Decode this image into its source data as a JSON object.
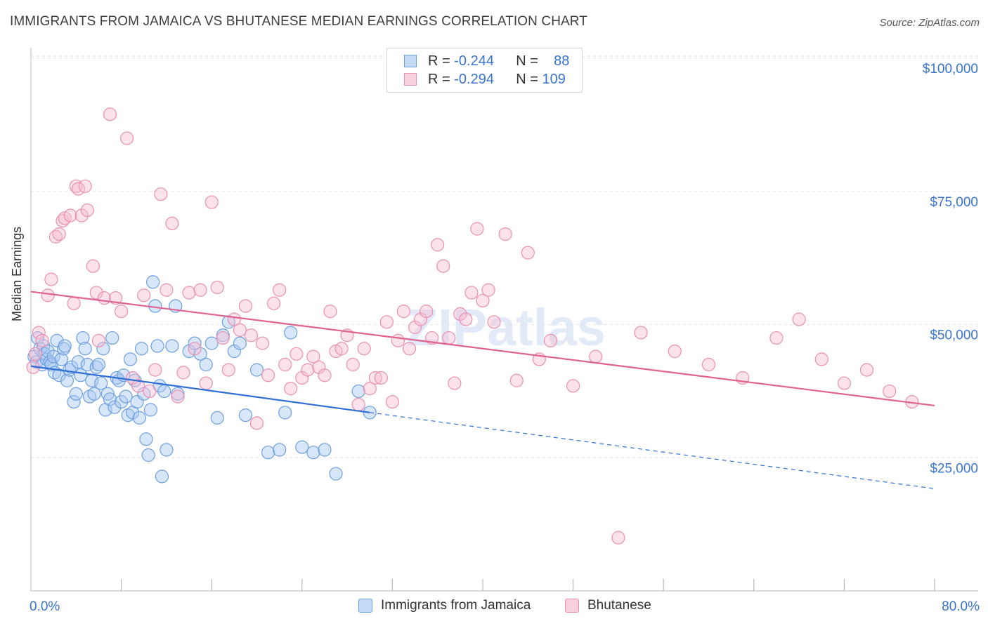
{
  "header": {
    "title": "IMMIGRANTS FROM JAMAICA VS BHUTANESE MEDIAN EARNINGS CORRELATION CHART",
    "source": "Source: ZipAtlas.com"
  },
  "legend": {
    "rows": [
      {
        "r_label": "R =",
        "r_value": "-0.244",
        "n_label": "N =",
        "n_value": "88"
      },
      {
        "r_label": "R =",
        "r_value": "-0.294",
        "n_label": "N =",
        "n_value": "109"
      }
    ]
  },
  "bottom_legend": {
    "series1": "Immigrants from Jamaica",
    "series2": "Bhutanese"
  },
  "colors": {
    "blue_fill": "#a9c8f2",
    "blue_stroke": "#6c9fe0",
    "blue_line": "#2f6fd6",
    "pink_fill": "#f7bfd2",
    "pink_stroke": "#ea8fb0",
    "pink_line": "#e0628f",
    "tick_text": "#3a74d0",
    "grid": "#e2e2e2"
  },
  "chart_data": {
    "type": "scatter",
    "title": "IMMIGRANTS FROM JAMAICA VS BHUTANESE MEDIAN EARNINGS CORRELATION CHART",
    "xlabel": "",
    "ylabel": "Median Earnings",
    "xlim": [
      0,
      80
    ],
    "ylim": [
      0,
      102000
    ],
    "x_tick_labels": [
      "0.0%",
      "80.0%"
    ],
    "y_ticks": [
      25000,
      50000,
      75000,
      100000
    ],
    "y_tick_labels": [
      "$25,000",
      "$50,000",
      "$75,000",
      "$100,000"
    ],
    "watermark": "ZIPatlas",
    "series": [
      {
        "name": "Immigrants from Jamaica",
        "R": -0.244,
        "N": 88,
        "trend": {
          "x_solid": [
            0,
            30
          ],
          "y_solid": [
            42200,
            33500
          ],
          "x_dashed": [
            30,
            80
          ],
          "y_dashed": [
            33500,
            19200
          ]
        },
        "points": [
          [
            0.3,
            44000
          ],
          [
            0.5,
            43000
          ],
          [
            0.6,
            47500
          ],
          [
            0.8,
            45500
          ],
          [
            1.0,
            42500
          ],
          [
            1.1,
            46000
          ],
          [
            1.2,
            44500
          ],
          [
            1.4,
            43500
          ],
          [
            1.5,
            45000
          ],
          [
            1.7,
            43000
          ],
          [
            1.8,
            42500
          ],
          [
            2.0,
            44000
          ],
          [
            2.1,
            41000
          ],
          [
            2.3,
            47000
          ],
          [
            2.5,
            40500
          ],
          [
            2.7,
            43500
          ],
          [
            2.9,
            45500
          ],
          [
            3.0,
            46000
          ],
          [
            3.2,
            39500
          ],
          [
            3.4,
            41500
          ],
          [
            3.6,
            42000
          ],
          [
            3.8,
            35500
          ],
          [
            4.0,
            37000
          ],
          [
            4.2,
            43000
          ],
          [
            4.4,
            40500
          ],
          [
            4.6,
            47500
          ],
          [
            4.8,
            45500
          ],
          [
            5.0,
            42500
          ],
          [
            5.2,
            36500
          ],
          [
            5.4,
            39500
          ],
          [
            5.6,
            37000
          ],
          [
            5.8,
            42000
          ],
          [
            6.0,
            42500
          ],
          [
            6.2,
            39000
          ],
          [
            6.4,
            45500
          ],
          [
            6.6,
            34000
          ],
          [
            6.8,
            37000
          ],
          [
            7.0,
            36000
          ],
          [
            7.2,
            47500
          ],
          [
            7.4,
            34500
          ],
          [
            7.6,
            40000
          ],
          [
            7.8,
            39500
          ],
          [
            8.0,
            35500
          ],
          [
            8.2,
            40500
          ],
          [
            8.4,
            36500
          ],
          [
            8.6,
            33000
          ],
          [
            8.8,
            43500
          ],
          [
            9.0,
            33500
          ],
          [
            9.2,
            39500
          ],
          [
            9.4,
            35500
          ],
          [
            9.6,
            32500
          ],
          [
            9.8,
            45500
          ],
          [
            10.0,
            37000
          ],
          [
            10.2,
            28500
          ],
          [
            10.4,
            25500
          ],
          [
            10.6,
            34000
          ],
          [
            10.8,
            58000
          ],
          [
            11.0,
            53500
          ],
          [
            11.2,
            46000
          ],
          [
            11.4,
            38500
          ],
          [
            11.6,
            21500
          ],
          [
            11.8,
            37500
          ],
          [
            12.0,
            26500
          ],
          [
            12.5,
            46000
          ],
          [
            12.8,
            53500
          ],
          [
            13.0,
            37000
          ],
          [
            14.0,
            45000
          ],
          [
            14.5,
            46500
          ],
          [
            15.0,
            44500
          ],
          [
            15.5,
            42500
          ],
          [
            16.0,
            46500
          ],
          [
            16.5,
            32500
          ],
          [
            17.0,
            48000
          ],
          [
            17.5,
            50500
          ],
          [
            18.0,
            45000
          ],
          [
            18.5,
            46500
          ],
          [
            19.0,
            33000
          ],
          [
            20.0,
            41500
          ],
          [
            21.0,
            26000
          ],
          [
            22.0,
            26500
          ],
          [
            22.5,
            33500
          ],
          [
            23.0,
            48500
          ],
          [
            24.0,
            27000
          ],
          [
            25.0,
            26000
          ],
          [
            26.0,
            26500
          ],
          [
            27.0,
            22000
          ],
          [
            29.0,
            37500
          ],
          [
            30.0,
            33500
          ]
        ]
      },
      {
        "name": "Bhutanese",
        "R": -0.294,
        "N": 109,
        "trend": {
          "x": [
            0,
            80
          ],
          "y": [
            56200,
            34800
          ]
        },
        "points": [
          [
            0.2,
            42000
          ],
          [
            0.4,
            44500
          ],
          [
            0.7,
            48500
          ],
          [
            1.0,
            47000
          ],
          [
            1.5,
            55500
          ],
          [
            1.8,
            58500
          ],
          [
            2.2,
            66500
          ],
          [
            2.5,
            67000
          ],
          [
            2.8,
            69500
          ],
          [
            3.0,
            70000
          ],
          [
            3.5,
            70500
          ],
          [
            3.8,
            54000
          ],
          [
            4.0,
            76000
          ],
          [
            4.2,
            75500
          ],
          [
            4.5,
            70500
          ],
          [
            4.8,
            76000
          ],
          [
            5.0,
            71500
          ],
          [
            5.5,
            61000
          ],
          [
            5.8,
            56000
          ],
          [
            6.0,
            47000
          ],
          [
            6.5,
            55000
          ],
          [
            7.0,
            89500
          ],
          [
            7.5,
            55000
          ],
          [
            8.0,
            52500
          ],
          [
            8.5,
            85000
          ],
          [
            9.0,
            40000
          ],
          [
            9.5,
            38500
          ],
          [
            10.0,
            55500
          ],
          [
            10.5,
            37500
          ],
          [
            11.0,
            41500
          ],
          [
            11.5,
            74500
          ],
          [
            12.0,
            56500
          ],
          [
            12.5,
            69000
          ],
          [
            13.0,
            36500
          ],
          [
            13.5,
            41000
          ],
          [
            14.0,
            56000
          ],
          [
            14.5,
            45500
          ],
          [
            15.0,
            56500
          ],
          [
            15.5,
            39000
          ],
          [
            16.0,
            73000
          ],
          [
            16.5,
            57000
          ],
          [
            17.0,
            47500
          ],
          [
            17.5,
            41500
          ],
          [
            18.0,
            51000
          ],
          [
            18.5,
            49000
          ],
          [
            19.0,
            53500
          ],
          [
            19.5,
            48000
          ],
          [
            20.0,
            31500
          ],
          [
            20.5,
            46500
          ],
          [
            21.0,
            40500
          ],
          [
            21.5,
            54000
          ],
          [
            22.0,
            56500
          ],
          [
            22.5,
            42500
          ],
          [
            23.0,
            38000
          ],
          [
            23.5,
            44500
          ],
          [
            24.0,
            40000
          ],
          [
            24.5,
            41500
          ],
          [
            25.0,
            44000
          ],
          [
            25.5,
            42000
          ],
          [
            26.0,
            40500
          ],
          [
            26.5,
            52500
          ],
          [
            27.0,
            45000
          ],
          [
            27.5,
            45500
          ],
          [
            28.0,
            48000
          ],
          [
            28.5,
            42500
          ],
          [
            29.0,
            35000
          ],
          [
            29.5,
            45500
          ],
          [
            30.0,
            38000
          ],
          [
            30.5,
            40000
          ],
          [
            31.0,
            40000
          ],
          [
            31.5,
            50500
          ],
          [
            32.0,
            35500
          ],
          [
            32.5,
            47000
          ],
          [
            33.0,
            52500
          ],
          [
            33.5,
            45500
          ],
          [
            34.0,
            49500
          ],
          [
            34.5,
            51000
          ],
          [
            35.0,
            52500
          ],
          [
            35.5,
            47500
          ],
          [
            36.0,
            65000
          ],
          [
            36.5,
            61000
          ],
          [
            37.0,
            47500
          ],
          [
            37.5,
            39000
          ],
          [
            38.0,
            52000
          ],
          [
            38.5,
            51000
          ],
          [
            39.0,
            56000
          ],
          [
            39.5,
            68000
          ],
          [
            40.0,
            54500
          ],
          [
            40.5,
            56500
          ],
          [
            41.0,
            50500
          ],
          [
            42.0,
            67000
          ],
          [
            43.0,
            39500
          ],
          [
            44.0,
            63500
          ],
          [
            45.0,
            43500
          ],
          [
            46.0,
            47000
          ],
          [
            48.0,
            38500
          ],
          [
            50.0,
            44000
          ],
          [
            52.0,
            10000
          ],
          [
            54.0,
            48500
          ],
          [
            57.0,
            45000
          ],
          [
            60.0,
            42500
          ],
          [
            63.0,
            40000
          ],
          [
            66.0,
            47500
          ],
          [
            68.0,
            51000
          ],
          [
            70.0,
            43500
          ],
          [
            72.0,
            39000
          ],
          [
            74.0,
            41500
          ],
          [
            76.0,
            37500
          ],
          [
            78.0,
            35500
          ]
        ]
      }
    ]
  }
}
